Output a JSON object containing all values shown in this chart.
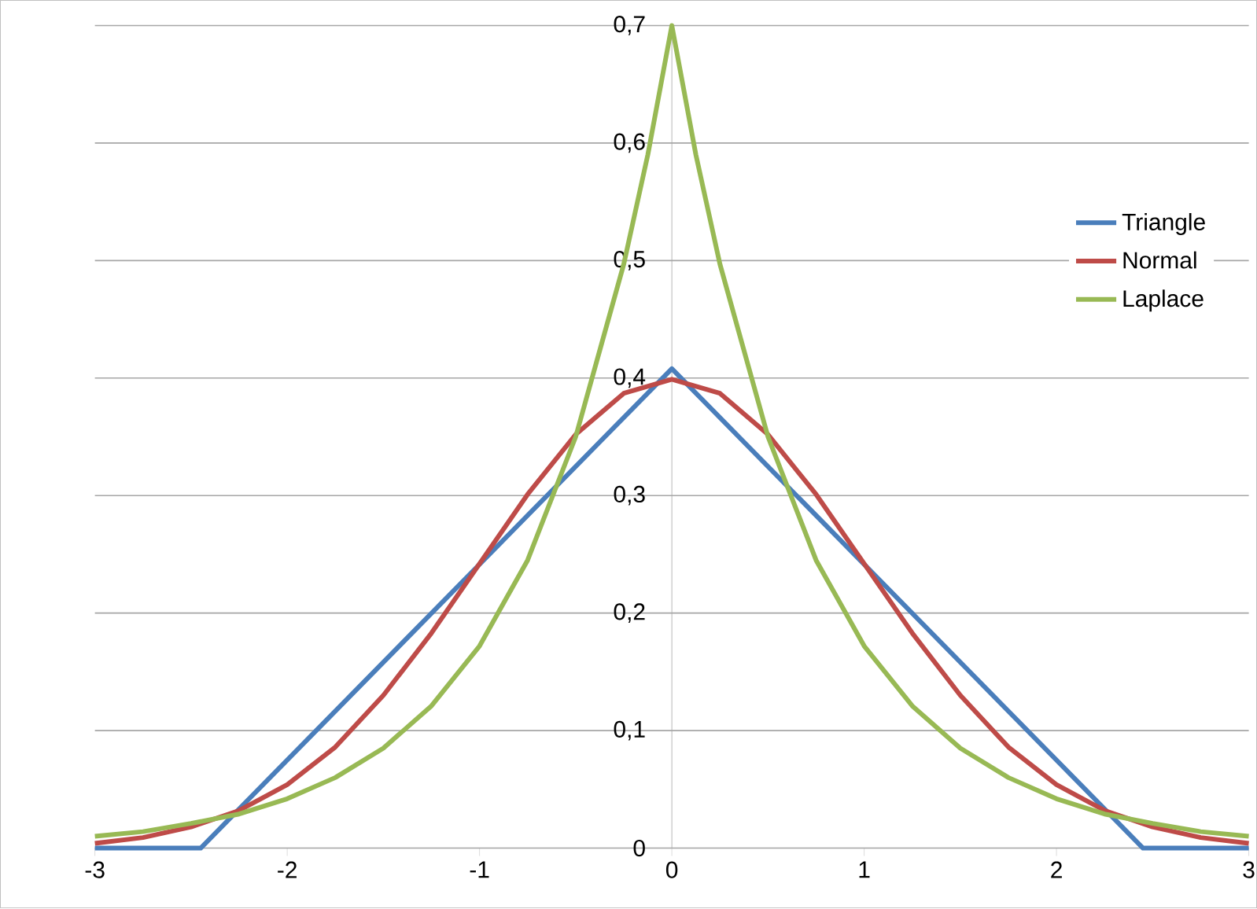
{
  "chart_data": {
    "type": "line",
    "xlim": [
      -3,
      3
    ],
    "ylim": [
      0,
      0.7
    ],
    "xticks": [
      -3,
      -2,
      -1,
      0,
      1,
      2,
      3
    ],
    "yticks": [
      {
        "value": 0,
        "label": "0"
      },
      {
        "value": 0.1,
        "label": "0,1"
      },
      {
        "value": 0.2,
        "label": "0,2"
      },
      {
        "value": 0.3,
        "label": "0,3"
      },
      {
        "value": 0.4,
        "label": "0,4"
      },
      {
        "value": 0.5,
        "label": "0,5"
      },
      {
        "value": 0.6,
        "label": "0,6"
      },
      {
        "value": 0.7,
        "label": "0,7"
      }
    ],
    "grid": "y",
    "legend": "right",
    "marker": "none",
    "line_style": "solid",
    "series": [
      {
        "name": "Triangle",
        "color": "#4a7ebb",
        "x": [
          -3,
          -2.5,
          -2.45,
          0,
          2.45,
          2.5,
          3
        ],
        "values": [
          0,
          0,
          0,
          0.408,
          0,
          0,
          0
        ]
      },
      {
        "name": "Normal",
        "color": "#be4b48",
        "x": [
          -3,
          -2.75,
          -2.5,
          -2.25,
          -2,
          -1.75,
          -1.5,
          -1.25,
          -1,
          -0.75,
          -0.5,
          -0.25,
          0,
          0.25,
          0.5,
          0.75,
          1,
          1.25,
          1.5,
          1.75,
          2,
          2.25,
          2.5,
          2.75,
          3
        ],
        "values": [
          0.004,
          0.009,
          0.018,
          0.032,
          0.054,
          0.086,
          0.13,
          0.183,
          0.242,
          0.301,
          0.352,
          0.387,
          0.399,
          0.387,
          0.352,
          0.301,
          0.242,
          0.183,
          0.13,
          0.086,
          0.054,
          0.032,
          0.018,
          0.009,
          0.004
        ]
      },
      {
        "name": "Laplace",
        "color": "#98b954",
        "x": [
          -3,
          -2.75,
          -2.5,
          -2.25,
          -2,
          -1.75,
          -1.5,
          -1.25,
          -1,
          -0.75,
          -0.5,
          -0.25,
          -0.125,
          0,
          0.125,
          0.25,
          0.5,
          0.75,
          1,
          1.25,
          1.5,
          1.75,
          2,
          2.25,
          2.5,
          2.75,
          3
        ],
        "values": [
          0.01,
          0.014,
          0.021,
          0.029,
          0.042,
          0.06,
          0.085,
          0.121,
          0.172,
          0.245,
          0.35,
          0.497,
          0.59,
          0.7,
          0.59,
          0.497,
          0.35,
          0.245,
          0.172,
          0.121,
          0.085,
          0.06,
          0.042,
          0.029,
          0.021,
          0.014,
          0.01
        ]
      }
    ]
  }
}
